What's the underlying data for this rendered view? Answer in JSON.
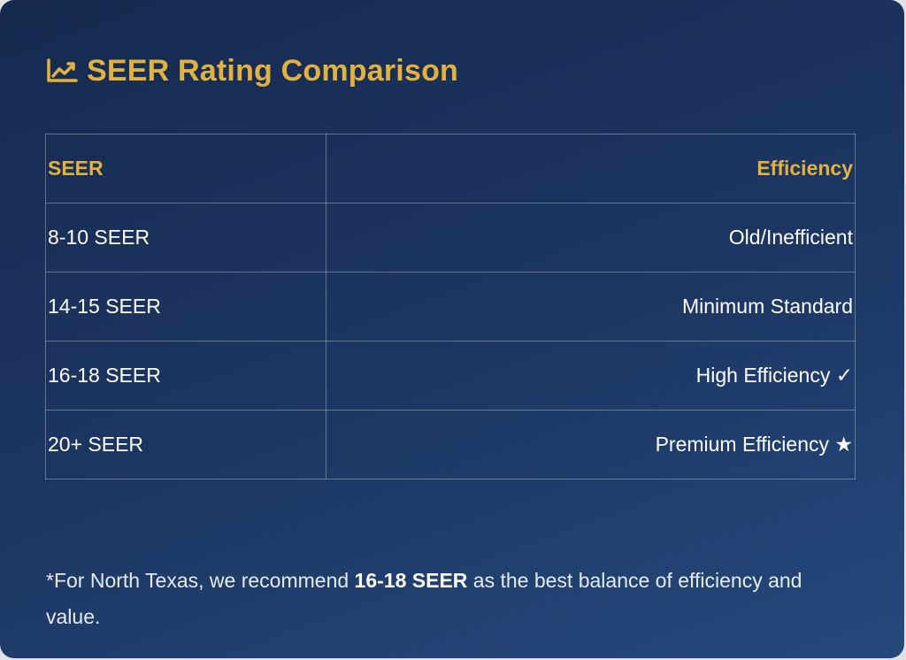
{
  "header": {
    "icon": "chart-line-icon",
    "title": "SEER Rating Comparison"
  },
  "table": {
    "columns": [
      "SEER",
      "Efficiency"
    ],
    "rows": [
      {
        "seer": "8-10 SEER",
        "efficiency": "Old/Inefficient"
      },
      {
        "seer": "14-15 SEER",
        "efficiency": "Minimum Standard"
      },
      {
        "seer": "16-18 SEER",
        "efficiency": "High Efficiency ✓"
      },
      {
        "seer": "20+ SEER",
        "efficiency": "Premium Efficiency ★"
      }
    ]
  },
  "note": {
    "prefix": "*For North Texas, we recommend ",
    "highlight": "16-18 SEER",
    "suffix": " as the best balance of efficiency and value."
  },
  "colors": {
    "accent": "#e2b23f",
    "background": "#1d3764",
    "text": "#ffffff"
  }
}
